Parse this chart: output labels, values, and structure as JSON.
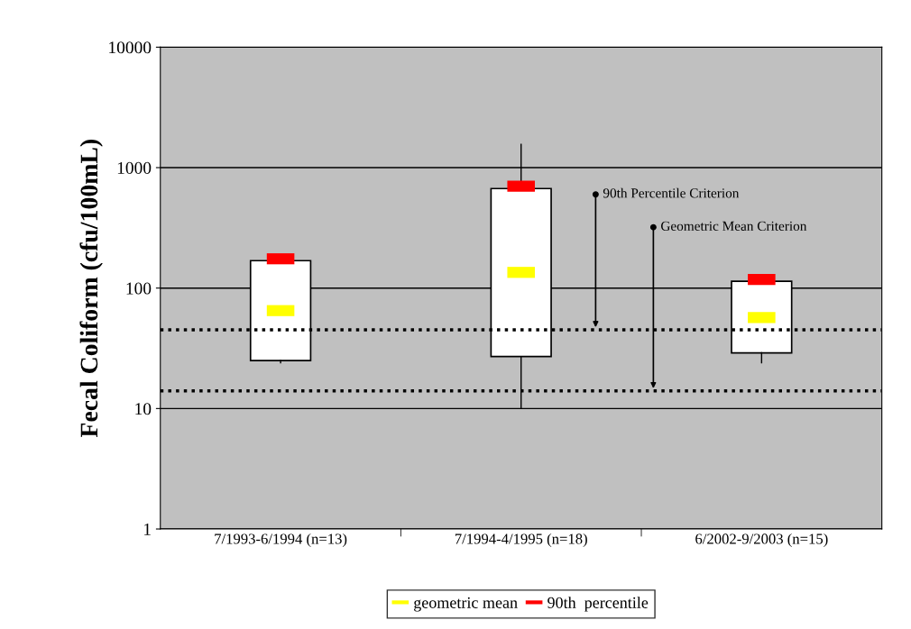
{
  "chart_data": {
    "type": "box",
    "ylabel": "Fecal Coliform (cfu/100mL)",
    "categories": [
      "7/1993-6/1994 (n=13)",
      "7/1994-4/1995 (n=18)",
      "6/2002-9/2003 (n=15)"
    ],
    "boxes": [
      {
        "low": 24,
        "q1": 25,
        "q3": 169,
        "high": 169
      },
      {
        "low": 10,
        "q1": 27,
        "q3": 670,
        "high": 1560
      },
      {
        "low": 24,
        "q1": 29,
        "q3": 114,
        "high": 114
      }
    ],
    "series": [
      {
        "name": "geometric mean",
        "type": "scatter",
        "color": "#ffff00",
        "x": [
          "7/1993-6/1994 (n=13)",
          "7/1994-4/1995 (n=18)",
          "6/2002-9/2003 (n=15)"
        ],
        "values": [
          65,
          135,
          57
        ]
      },
      {
        "name": "90th  percentile",
        "type": "scatter",
        "color": "#ff0000",
        "x": [
          "7/1993-6/1994 (n=13)",
          "7/1994-4/1995 (n=18)",
          "6/2002-9/2003 (n=15)"
        ],
        "values": [
          175,
          700,
          118
        ]
      }
    ],
    "ref_lines": [
      {
        "axis": "y",
        "value": 45,
        "label": "90th Percentile Criterion",
        "color": "#000000",
        "line_style": "dotted"
      },
      {
        "axis": "y",
        "value": 14,
        "label": "Geometric Mean Criterion",
        "color": "#000000",
        "line_style": "dotted"
      }
    ],
    "log": "y",
    "ylim": [
      1,
      10000
    ],
    "yticks": [
      1,
      10,
      100,
      1000,
      10000
    ],
    "grid": "y",
    "legend": "bottom"
  }
}
